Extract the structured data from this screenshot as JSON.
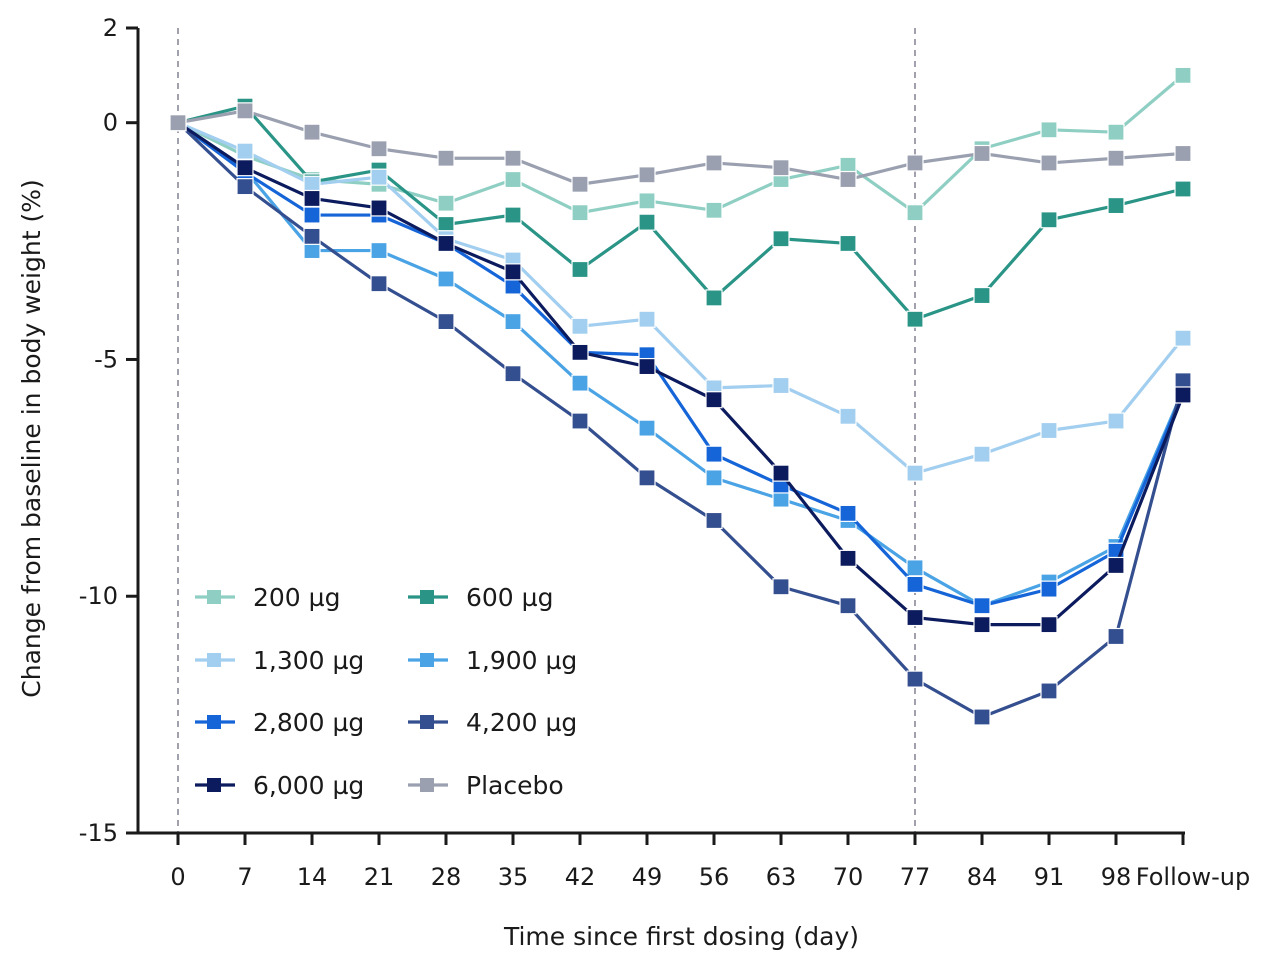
{
  "chart_data": {
    "type": "line",
    "title": "",
    "xlabel": "Time since first dosing (day)",
    "ylabel": "Change from baseline in body weight (%)",
    "categories": [
      "0",
      "7",
      "14",
      "21",
      "28",
      "35",
      "42",
      "49",
      "56",
      "63",
      "70",
      "77",
      "84",
      "91",
      "98",
      "Follow-up"
    ],
    "ylim": [
      -15,
      2
    ],
    "yticks": [
      2,
      0,
      -5,
      -10,
      -15
    ],
    "ytick_labels": [
      "2",
      "0",
      "-5",
      "-10",
      "-15"
    ],
    "reference_lines_x": [
      "0",
      "77"
    ],
    "legend_position": "bottom-left",
    "grid": false,
    "series": [
      {
        "name": "200 µg",
        "color": "#8fcfc3",
        "values": [
          0,
          -0.7,
          -1.2,
          -1.3,
          -1.7,
          -1.2,
          -1.9,
          -1.65,
          -1.85,
          -1.2,
          -0.9,
          -1.9,
          -0.55,
          -0.15,
          -0.2,
          1.0
        ]
      },
      {
        "name": "600 µg",
        "color": "#2a9587",
        "values": [
          0,
          0.35,
          -1.25,
          -1.0,
          -2.15,
          -1.95,
          -3.1,
          -2.1,
          -3.7,
          -2.45,
          -2.55,
          -4.15,
          -3.65,
          -2.05,
          -1.75,
          -1.4
        ]
      },
      {
        "name": "1,300 µg",
        "color": "#a2ceef",
        "values": [
          0,
          -0.6,
          -1.3,
          -1.15,
          -2.45,
          -2.9,
          -4.3,
          -4.15,
          -5.6,
          -5.55,
          -6.2,
          -7.4,
          -7.0,
          -6.5,
          -6.3,
          -4.55
        ]
      },
      {
        "name": "1,900 µg",
        "color": "#4aa3e5",
        "values": [
          0,
          -1.0,
          -2.7,
          -2.7,
          -3.3,
          -4.2,
          -5.5,
          -6.45,
          -7.5,
          -7.95,
          -8.4,
          -9.4,
          -10.2,
          -9.7,
          -8.95,
          -5.65
        ]
      },
      {
        "name": "2,800 µg",
        "color": "#1565d8",
        "values": [
          0,
          -1.05,
          -1.95,
          -1.95,
          -2.55,
          -3.45,
          -4.85,
          -4.9,
          -7.0,
          -7.65,
          -8.25,
          -9.75,
          -10.2,
          -9.85,
          -9.05,
          -5.7
        ]
      },
      {
        "name": "4,200 µg",
        "color": "#344f8f",
        "values": [
          0,
          -1.35,
          -2.4,
          -3.4,
          -4.2,
          -5.3,
          -6.3,
          -7.5,
          -8.4,
          -9.8,
          -10.2,
          -11.75,
          -12.55,
          -12.0,
          -10.85,
          -5.45
        ]
      },
      {
        "name": "6,000 µg",
        "color": "#0c1b5e",
        "values": [
          0,
          -0.95,
          -1.6,
          -1.8,
          -2.55,
          -3.15,
          -4.85,
          -5.15,
          -5.85,
          -7.4,
          -9.2,
          -10.45,
          -10.6,
          -10.6,
          -9.35,
          -5.75
        ]
      },
      {
        "name": "Placebo",
        "color": "#9aa0af",
        "values": [
          0,
          0.25,
          -0.2,
          -0.55,
          -0.75,
          -0.75,
          -1.3,
          -1.1,
          -0.85,
          -0.95,
          -1.2,
          -0.85,
          -0.65,
          -0.85,
          -0.75,
          -0.65
        ]
      }
    ]
  }
}
